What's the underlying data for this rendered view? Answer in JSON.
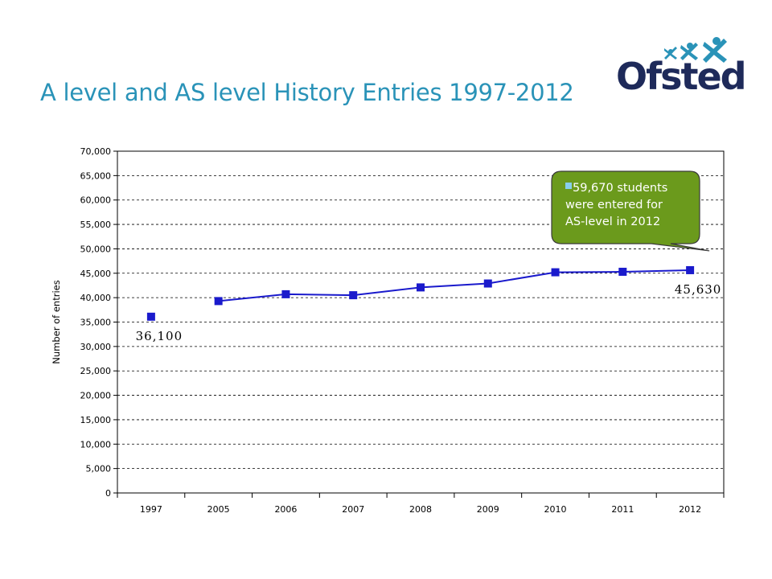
{
  "slide": {
    "title": "A level and AS level History Entries 1997-2012"
  },
  "logo": {
    "text": "Ofsted",
    "colors": {
      "word": "#1e2a5a",
      "stars": "#2a93b8"
    }
  },
  "chart_data": {
    "type": "line",
    "categories": [
      "1997",
      "2005",
      "2006",
      "2007",
      "2008",
      "2009",
      "2010",
      "2011",
      "2012"
    ],
    "series": [
      {
        "values": [
          36100,
          39300,
          40700,
          40500,
          42100,
          42900,
          45200,
          45300,
          45630
        ],
        "color": "#1a1acc",
        "connect_from_index": 1
      }
    ],
    "ylabel": "Number of entries",
    "xlabel": "",
    "ylim": [
      0,
      70000
    ],
    "ystep": 5000,
    "grid": "horizontal dashed",
    "y_tick_labels": [
      "0",
      "5,000",
      "10,000",
      "15,000",
      "20,000",
      "25,000",
      "30,000",
      "35,000",
      "40,000",
      "45,000",
      "50,000",
      "55,000",
      "60,000",
      "65,000",
      "70,000"
    ],
    "data_labels": [
      {
        "index": 0,
        "text": "36,100",
        "placement": "below"
      },
      {
        "index": 8,
        "text": "45,630",
        "placement": "below"
      }
    ],
    "annotation": {
      "lines": [
        "59,670 students",
        "were entered for",
        "AS-level in 2012"
      ],
      "bullet_color": "#87ceeb",
      "fill": "#6b9a1c",
      "points_to_index": 8
    }
  }
}
